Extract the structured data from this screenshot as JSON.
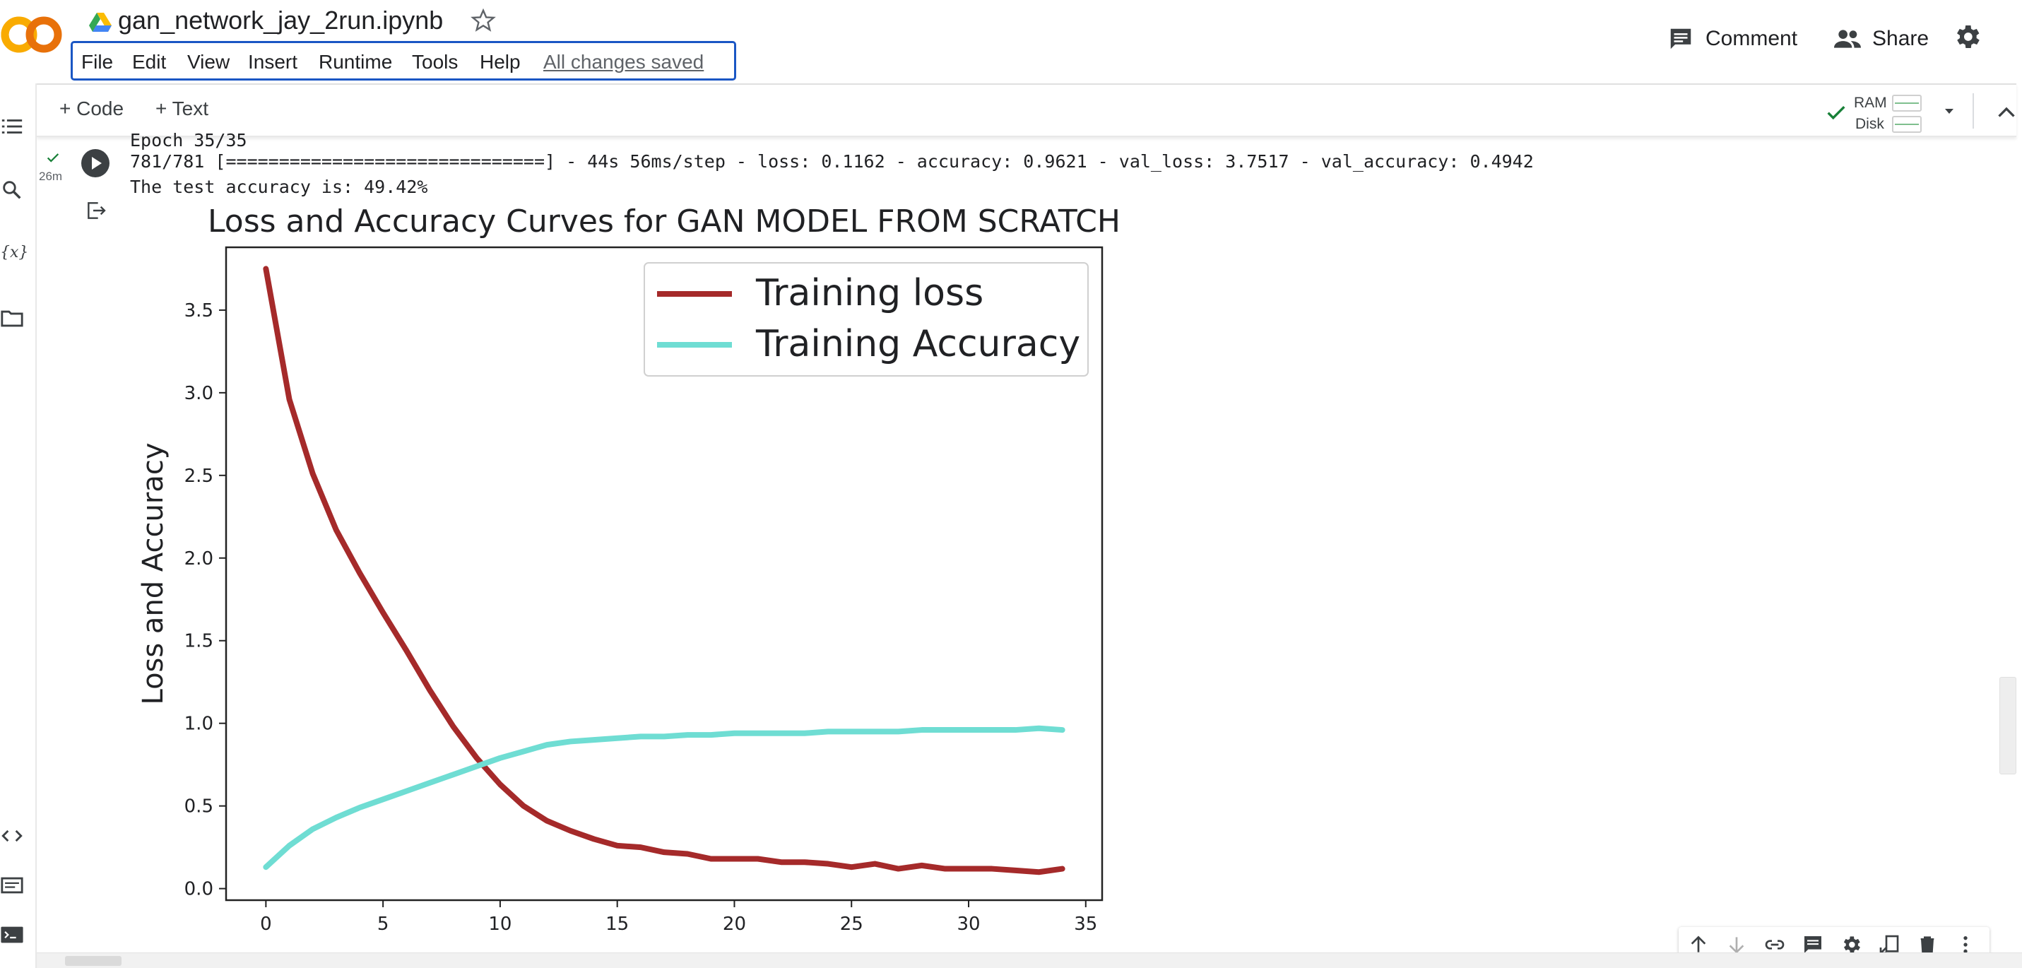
{
  "header": {
    "notebook_title": "gan_network_jay_2run.ipynb",
    "menu": [
      "File",
      "Edit",
      "View",
      "Insert",
      "Runtime",
      "Tools",
      "Help"
    ],
    "save_status": "All changes saved",
    "comment_label": "Comment",
    "share_label": "Share"
  },
  "toolbar": {
    "add_code_label": "+ Code",
    "add_text_label": "+ Text",
    "ram_label": "RAM",
    "disk_label": "Disk"
  },
  "cell": {
    "exec_time": "26m",
    "output_lines": [
      "Epoch 35/35",
      "781/781 [==============================] - 44s 56ms/step - loss: 0.1162 - accuracy: 0.9621 - val_loss: 3.7517 - val_accuracy: 0.4942",
      "The test accuracy is: 49.42%"
    ]
  },
  "chart_data": {
    "type": "line",
    "title": "Loss and Accuracy Curves for GAN MODEL FROM SCRATCH",
    "xlabel": "",
    "ylabel": "Loss and Accuracy",
    "xlim": [
      -1.7,
      35.7
    ],
    "ylim": [
      -0.07,
      3.88
    ],
    "xticks": [
      0,
      5,
      10,
      15,
      20,
      25,
      30,
      35
    ],
    "yticks": [
      "0.0",
      "0.5",
      "1.0",
      "1.5",
      "2.0",
      "2.5",
      "3.0",
      "3.5"
    ],
    "grid": false,
    "legend_position": "upper-right",
    "x": [
      0,
      1,
      2,
      3,
      4,
      5,
      6,
      7,
      8,
      9,
      10,
      11,
      12,
      13,
      14,
      15,
      16,
      17,
      18,
      19,
      20,
      21,
      22,
      23,
      24,
      25,
      26,
      27,
      28,
      29,
      30,
      31,
      32,
      33,
      34
    ],
    "series": [
      {
        "name": "Training loss",
        "color": "#a52a2a",
        "values": [
          3.75,
          2.96,
          2.51,
          2.17,
          1.91,
          1.67,
          1.44,
          1.2,
          0.98,
          0.79,
          0.63,
          0.5,
          0.41,
          0.35,
          0.3,
          0.26,
          0.25,
          0.22,
          0.21,
          0.18,
          0.18,
          0.18,
          0.16,
          0.16,
          0.15,
          0.13,
          0.15,
          0.12,
          0.14,
          0.12,
          0.12,
          0.12,
          0.11,
          0.1,
          0.12
        ]
      },
      {
        "name": "Training Accuracy",
        "color": "#6fddd3",
        "values": [
          0.13,
          0.26,
          0.36,
          0.43,
          0.49,
          0.54,
          0.59,
          0.64,
          0.69,
          0.74,
          0.79,
          0.83,
          0.87,
          0.89,
          0.9,
          0.91,
          0.92,
          0.92,
          0.93,
          0.93,
          0.94,
          0.94,
          0.94,
          0.94,
          0.95,
          0.95,
          0.95,
          0.95,
          0.96,
          0.96,
          0.96,
          0.96,
          0.96,
          0.97,
          0.96
        ]
      }
    ]
  },
  "icons": {
    "logo": "colab-logo-icon",
    "drive": "drive-icon",
    "star": "star-icon",
    "comment": "comment-icon",
    "share": "people-icon",
    "settings": "gear-icon"
  }
}
